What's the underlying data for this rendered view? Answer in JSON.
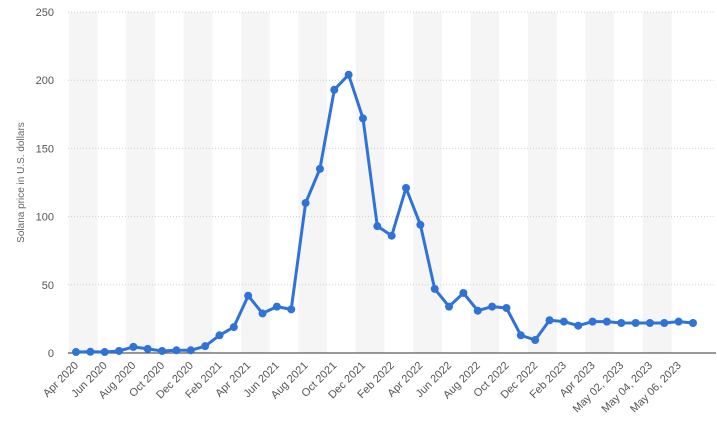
{
  "chart_data": {
    "type": "line",
    "ylabel": "Solana price in U.S. dollars",
    "ylim": [
      0,
      250
    ],
    "yticks": [
      0,
      50,
      100,
      150,
      200,
      250
    ],
    "grid": true,
    "x": [
      "Apr 2020",
      "May 2020",
      "Jun 2020",
      "Jul 2020",
      "Aug 2020",
      "Sep 2020",
      "Oct 2020",
      "Nov 2020",
      "Dec 2020",
      "Jan 2021",
      "Feb 2021",
      "Mar 2021",
      "Apr 2021",
      "May 2021",
      "Jun 2021",
      "Jul 2021",
      "Aug 2021",
      "Sep 2021",
      "Oct 2021",
      "Nov 2021",
      "Dec 2021",
      "Jan 2022",
      "Feb 2022",
      "Mar 2022",
      "Apr 2022",
      "May 2022",
      "Jun 2022",
      "Jul 2022",
      "Aug 2022",
      "Sep 2022",
      "Oct 2022",
      "Nov 2022",
      "Dec 2022",
      "Jan 2023",
      "Feb 2023",
      "Mar 2023",
      "Apr 2023",
      "May 01, 2023",
      "May 02, 2023",
      "May 03, 2023",
      "May 04, 2023",
      "May 05, 2023",
      "May 06, 2023",
      "May 07, 2023"
    ],
    "xtick_labels": [
      "Apr 2020",
      "Jun 2020",
      "Aug 2020",
      "Oct 2020",
      "Dec 2020",
      "Feb 2021",
      "Apr 2021",
      "Jun 2021",
      "Aug 2021",
      "Oct 2021",
      "Dec 2021",
      "Feb 2022",
      "Apr 2022",
      "Jun 2022",
      "Aug 2022",
      "Oct 2022",
      "Dec 2022",
      "Feb 2023",
      "Apr 2023",
      "May 02, 2023",
      "May 04, 2023",
      "May 06, 2023"
    ],
    "series": [
      {
        "color": "#2f73d8",
        "values": [
          0.7,
          0.9,
          0.7,
          1.5,
          4.5,
          3,
          1.5,
          2,
          2,
          5,
          13,
          19,
          42,
          29,
          34,
          32,
          110,
          135,
          193,
          204,
          172,
          93,
          86,
          121,
          94,
          47,
          34,
          44,
          31,
          34,
          33,
          13,
          9.5,
          24,
          23,
          20,
          23,
          23,
          22,
          22,
          22,
          22,
          23,
          22
        ]
      }
    ]
  }
}
